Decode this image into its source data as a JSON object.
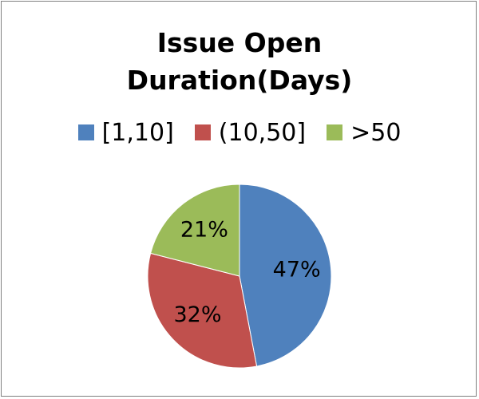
{
  "chart_data": {
    "type": "pie",
    "title": "Issue Open\nDuration(Days)",
    "categories": [
      "[1,10]",
      "(10,50]",
      ">50"
    ],
    "values": [
      47,
      32,
      21
    ],
    "data_labels": [
      "47%",
      "32%",
      "21%"
    ],
    "colors": [
      "#4f81bd",
      "#c0504d",
      "#9bbb59"
    ],
    "legend_position": "top"
  }
}
